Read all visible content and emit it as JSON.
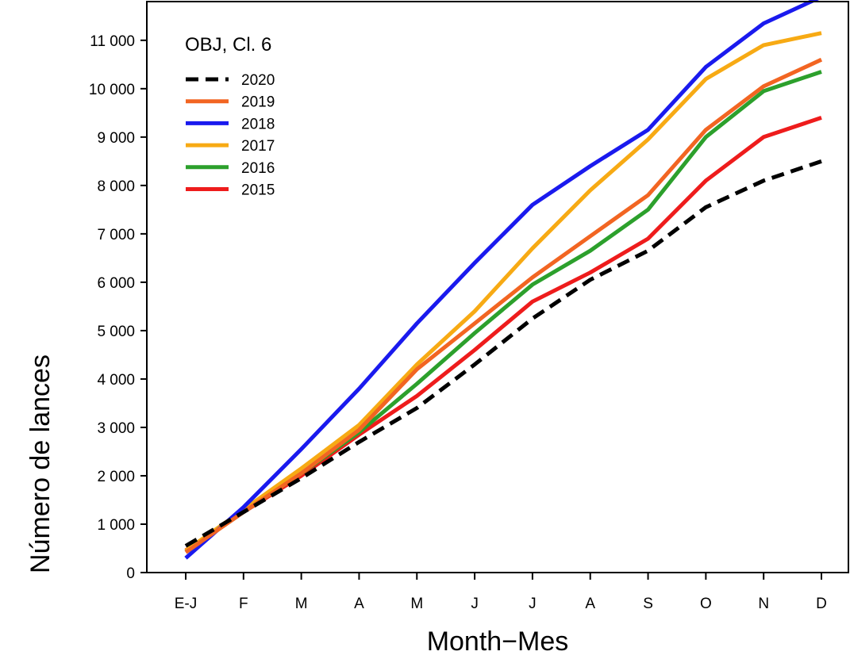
{
  "chart_data": {
    "type": "line",
    "title": "OBJ, Cl. 6",
    "xlabel": "Month−Mes",
    "ylabel": "Número de lances",
    "categories": [
      "E-J",
      "F",
      "M",
      "A",
      "M",
      "J",
      "J",
      "A",
      "S",
      "O",
      "N",
      "D"
    ],
    "ylim": [
      0,
      11800
    ],
    "yticks": [
      0,
      1000,
      2000,
      3000,
      4000,
      5000,
      6000,
      7000,
      8000,
      9000,
      10000,
      11000
    ],
    "ytick_labels": [
      "0",
      "1 000",
      "2 000",
      "3 000",
      "4 000",
      "5 000",
      "6 000",
      "7 000",
      "8 000",
      "9 000",
      "10 000",
      "11 000"
    ],
    "grid": false,
    "legend_position": "top-left",
    "series": [
      {
        "name": "2020",
        "color": "#000000",
        "dashed": true,
        "values": [
          550,
          1250,
          1950,
          2700,
          3400,
          4300,
          5250,
          6050,
          6650,
          7550,
          8100,
          8500
        ]
      },
      {
        "name": "2019",
        "color": "#f26522",
        "dashed": false,
        "values": [
          420,
          1250,
          2050,
          2950,
          4200,
          5150,
          6100,
          6950,
          7800,
          9150,
          10050,
          10600
        ]
      },
      {
        "name": "2018",
        "color": "#1a1aee",
        "dashed": false,
        "values": [
          300,
          1350,
          2550,
          3800,
          5150,
          6400,
          7600,
          8400,
          9150,
          10450,
          11350,
          11900
        ]
      },
      {
        "name": "2017",
        "color": "#f7aa14",
        "dashed": false,
        "values": [
          450,
          1300,
          2150,
          3050,
          4300,
          5400,
          6700,
          7900,
          8950,
          10200,
          10900,
          11150
        ]
      },
      {
        "name": "2016",
        "color": "#2ca02c",
        "dashed": false,
        "values": [
          430,
          1250,
          2050,
          2900,
          3900,
          4950,
          5950,
          6650,
          7500,
          9000,
          9950,
          10350
        ]
      },
      {
        "name": "2015",
        "color": "#ee1c1c",
        "dashed": false,
        "values": [
          460,
          1250,
          2000,
          2850,
          3650,
          4600,
          5600,
          6200,
          6900,
          8100,
          9000,
          9400
        ]
      }
    ]
  }
}
